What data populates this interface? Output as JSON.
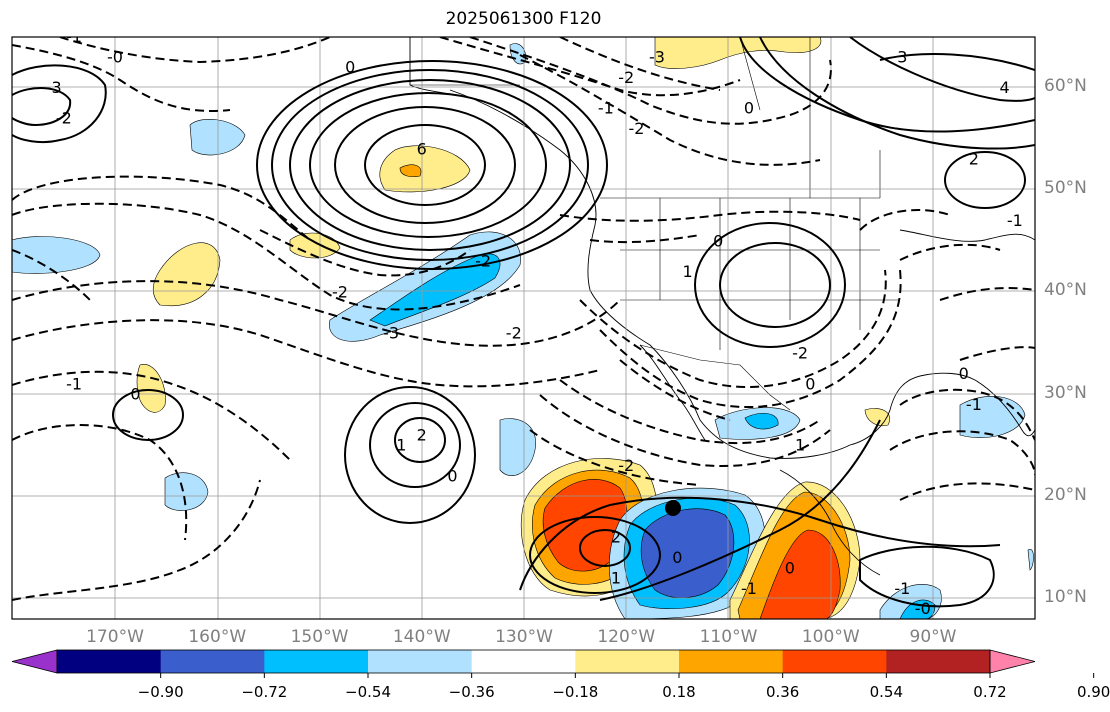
{
  "title": "2025061300 F120",
  "lat_labels": [
    {
      "text": "60°N",
      "lat": 60
    },
    {
      "text": "50°N",
      "lat": 50
    },
    {
      "text": "40°N",
      "lat": 40
    },
    {
      "text": "30°N",
      "lat": 30
    },
    {
      "text": "20°N",
      "lat": 20
    },
    {
      "text": "10°N",
      "lat": 10
    }
  ],
  "lon_labels": [
    {
      "text": "170°W",
      "lon": -170
    },
    {
      "text": "160°W",
      "lon": -160
    },
    {
      "text": "150°W",
      "lon": -150
    },
    {
      "text": "140°W",
      "lon": -140
    },
    {
      "text": "130°W",
      "lon": -130
    },
    {
      "text": "120°W",
      "lon": -120
    },
    {
      "text": "110°W",
      "lon": -110
    },
    {
      "text": "100°W",
      "lon": -100
    },
    {
      "text": "90°W",
      "lon": -90
    }
  ],
  "colorbar": {
    "colors": [
      "#9932cc",
      "#000080",
      "#3a5fcd",
      "#00bfff",
      "#b0e2ff",
      "#ffffff",
      "#ffec8b",
      "#ffa500",
      "#ff4500",
      "#b22222",
      "#ff82ab"
    ],
    "labels": [
      "−0.90",
      "−0.72",
      "−0.54",
      "−0.36",
      "−0.18",
      "0.18",
      "0.36",
      "0.54",
      "0.72",
      "0.90"
    ]
  },
  "contour_labels": [
    {
      "text": "6",
      "lon": -140,
      "lat": 54
    },
    {
      "text": "-2",
      "lon": -131,
      "lat": 36
    },
    {
      "text": "-3",
      "lon": -143,
      "lat": 36
    },
    {
      "text": "-2",
      "lon": -148,
      "lat": 40
    },
    {
      "text": "-1",
      "lon": -174,
      "lat": 31
    },
    {
      "text": "0",
      "lon": -168,
      "lat": 30
    },
    {
      "text": "2",
      "lon": -140,
      "lat": 26
    },
    {
      "text": "1",
      "lon": -142,
      "lat": 25
    },
    {
      "text": "0",
      "lon": -137,
      "lat": 22
    },
    {
      "text": "1",
      "lon": -114,
      "lat": 42
    },
    {
      "text": "0",
      "lon": -111,
      "lat": 45
    },
    {
      "text": "-2",
      "lon": -120,
      "lat": 23
    },
    {
      "text": "2",
      "lon": -121,
      "lat": 16
    },
    {
      "text": "1",
      "lon": -121,
      "lat": 12
    },
    {
      "text": "0",
      "lon": -115,
      "lat": 14
    },
    {
      "text": "-1",
      "lon": -108,
      "lat": 11
    },
    {
      "text": "0",
      "lon": -104,
      "lat": 13
    },
    {
      "text": "1",
      "lon": -103,
      "lat": 25
    },
    {
      "text": "-1",
      "lon": -93,
      "lat": 11
    },
    {
      "text": "-0",
      "lon": -91,
      "lat": 9
    },
    {
      "text": "-1",
      "lon": -86,
      "lat": 29
    },
    {
      "text": "0",
      "lon": -87,
      "lat": 32
    },
    {
      "text": "-2",
      "lon": -103,
      "lat": 34
    },
    {
      "text": "0",
      "lon": -102,
      "lat": 31
    },
    {
      "text": "0",
      "lon": -147,
      "lat": 62
    },
    {
      "text": "-1",
      "lon": -174,
      "lat": 65
    },
    {
      "text": "-3",
      "lon": -176,
      "lat": 60
    },
    {
      "text": "-2",
      "lon": -175,
      "lat": 57
    },
    {
      "text": "-3",
      "lon": -117,
      "lat": 63
    },
    {
      "text": "-2",
      "lon": -120,
      "lat": 61
    },
    {
      "text": "-1",
      "lon": -122,
      "lat": 58
    },
    {
      "text": "-2",
      "lon": -119,
      "lat": 56
    },
    {
      "text": "0",
      "lon": -108,
      "lat": 58
    },
    {
      "text": "3",
      "lon": -93,
      "lat": 63
    },
    {
      "text": "4",
      "lon": -83,
      "lat": 60
    },
    {
      "text": "2",
      "lon": -86,
      "lat": 53
    },
    {
      "text": "-1",
      "lon": -82,
      "lat": 47
    },
    {
      "text": "-0",
      "lon": -170,
      "lat": 63
    },
    {
      "text": "-2",
      "lon": -134,
      "lat": 43
    }
  ]
}
